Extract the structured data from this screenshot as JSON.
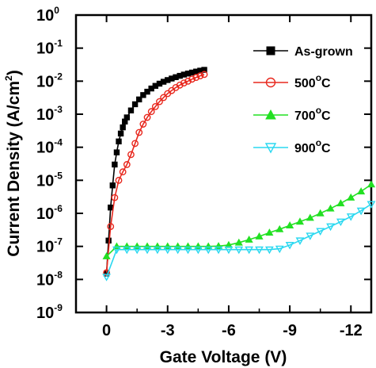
{
  "chart_data": {
    "type": "line",
    "xlabel": "Gate Voltage (V)",
    "ylabel": "Current Density (A/cm",
    "ylabel_sup": "2",
    "ylabel_tail": ")",
    "xscale": "linear",
    "yscale": "log",
    "xlim": [
      1.5,
      -13
    ],
    "ylim": [
      1e-09,
      1
    ],
    "x_ticks": [
      {
        "value": 0,
        "label": "0"
      },
      {
        "value": -3,
        "label": "-3"
      },
      {
        "value": -6,
        "label": "-6"
      },
      {
        "value": -9,
        "label": "-9"
      },
      {
        "value": -12,
        "label": "-12"
      }
    ],
    "y_ticks": [
      {
        "exp": 0,
        "base": "10",
        "sup": "0"
      },
      {
        "exp": -1,
        "base": "10",
        "sup": "-1"
      },
      {
        "exp": -2,
        "base": "10",
        "sup": "-2"
      },
      {
        "exp": -3,
        "base": "10",
        "sup": "-3"
      },
      {
        "exp": -4,
        "base": "10",
        "sup": "-4"
      },
      {
        "exp": -5,
        "base": "10",
        "sup": "-5"
      },
      {
        "exp": -6,
        "base": "10",
        "sup": "-6"
      },
      {
        "exp": -7,
        "base": "10",
        "sup": "-7"
      },
      {
        "exp": -8,
        "base": "10",
        "sup": "-8"
      },
      {
        "exp": -9,
        "base": "10",
        "sup": "-9"
      }
    ],
    "legend_position": "top-right",
    "series": [
      {
        "name": "As-grown",
        "label_text": "As-grown",
        "label_sup": "",
        "label_tail": "",
        "color": "#000000",
        "marker": "square",
        "marker_fill": "#000000",
        "x": [
          0,
          -0.1,
          -0.2,
          -0.3,
          -0.4,
          -0.5,
          -0.6,
          -0.7,
          -0.8,
          -0.9,
          -1.0,
          -1.2,
          -1.4,
          -1.6,
          -1.8,
          -2.0,
          -2.2,
          -2.4,
          -2.6,
          -2.8,
          -3.0,
          -3.2,
          -3.4,
          -3.6,
          -3.8,
          -4.0,
          -4.2,
          -4.4,
          -4.6,
          -4.8
        ],
        "y": [
          1.5e-08,
          1.5e-07,
          1.5e-06,
          7e-06,
          3e-05,
          7e-05,
          0.00015,
          0.00026,
          0.0004,
          0.0006,
          0.0008,
          0.0013,
          0.002,
          0.0028,
          0.0038,
          0.0048,
          0.006,
          0.0072,
          0.0084,
          0.0096,
          0.0108,
          0.012,
          0.0132,
          0.0145,
          0.0158,
          0.017,
          0.0182,
          0.0195,
          0.0208,
          0.022
        ]
      },
      {
        "name": "500°C",
        "label_text": "500",
        "label_sup": "o",
        "label_tail": "C",
        "color": "#e8281e",
        "marker": "circle-open",
        "marker_fill": "none",
        "x": [
          0,
          -0.2,
          -0.4,
          -0.6,
          -0.8,
          -1.0,
          -1.2,
          -1.4,
          -1.6,
          -1.8,
          -2.0,
          -2.2,
          -2.4,
          -2.6,
          -2.8,
          -3.0,
          -3.2,
          -3.4,
          -3.6,
          -3.8,
          -4.0,
          -4.2,
          -4.4,
          -4.6,
          -4.8
        ],
        "y": [
          1.6e-08,
          4e-07,
          3e-06,
          1e-05,
          1.8e-05,
          3e-05,
          6e-05,
          0.00013,
          0.00028,
          0.0005,
          0.0008,
          0.0012,
          0.0017,
          0.0024,
          0.0032,
          0.0042,
          0.0052,
          0.0064,
          0.0076,
          0.0088,
          0.01,
          0.0115,
          0.013,
          0.0145,
          0.016
        ]
      },
      {
        "name": "700°C",
        "label_text": "700",
        "label_sup": "o",
        "label_tail": "C",
        "color": "#22e022",
        "marker": "triangle-up",
        "marker_fill": "#22e022",
        "x": [
          0,
          -0.5,
          -1.0,
          -1.5,
          -2.0,
          -2.5,
          -3.0,
          -3.5,
          -4.0,
          -4.5,
          -5.0,
          -5.5,
          -6.0,
          -6.5,
          -7.0,
          -7.5,
          -8.0,
          -8.5,
          -9.0,
          -9.5,
          -10.0,
          -10.5,
          -11.0,
          -11.5,
          -12.0,
          -12.5,
          -13.0
        ],
        "y": [
          5e-08,
          1e-07,
          1e-07,
          1e-07,
          1e-07,
          1e-07,
          1e-07,
          1e-07,
          1e-07,
          1e-07,
          1e-07,
          1.02e-07,
          1.1e-07,
          1.3e-07,
          1.6e-07,
          2e-07,
          2.6e-07,
          3.3e-07,
          4.3e-07,
          5.6e-07,
          7.3e-07,
          1e-06,
          1.4e-06,
          2e-06,
          3e-06,
          4.6e-06,
          7.5e-06
        ]
      },
      {
        "name": "900°C",
        "label_text": "900",
        "label_sup": "o",
        "label_tail": "C",
        "color": "#2ad8f0",
        "marker": "triangle-down-open",
        "marker_fill": "none",
        "x": [
          0,
          -0.5,
          -1.0,
          -1.5,
          -2.0,
          -2.5,
          -3.0,
          -3.5,
          -4.0,
          -4.5,
          -5.0,
          -5.5,
          -6.0,
          -6.5,
          -7.0,
          -7.5,
          -8.0,
          -8.5,
          -9.0,
          -9.5,
          -10.0,
          -10.5,
          -11.0,
          -11.5,
          -12.0,
          -12.5,
          -13.0
        ],
        "y": [
          1.2e-08,
          8e-08,
          8e-08,
          8e-08,
          8e-08,
          8e-08,
          8e-08,
          8e-08,
          8e-08,
          8e-08,
          8e-08,
          8e-08,
          8e-08,
          8e-08,
          8e-08,
          8e-08,
          8e-08,
          8.5e-08,
          1.1e-07,
          1.5e-07,
          2.1e-07,
          2.9e-07,
          4e-07,
          5.6e-07,
          8e-07,
          1.2e-06,
          1.9e-06
        ]
      }
    ]
  }
}
